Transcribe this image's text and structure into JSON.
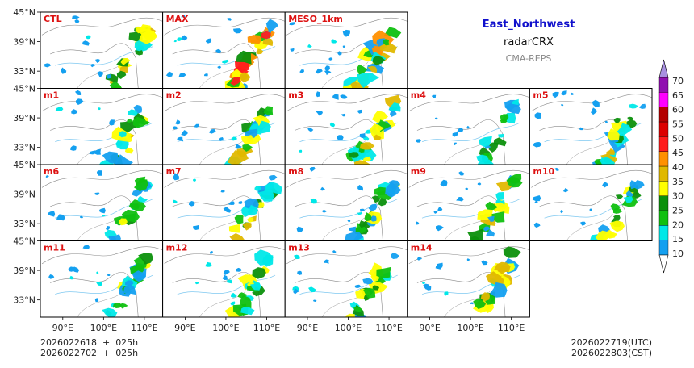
{
  "title": {
    "region": "East_Northwest",
    "variable": "radarCRX",
    "model": "CMA-REPS",
    "region_color": "#1010cc",
    "model_color": "#888888"
  },
  "panels": [
    {
      "label": "CTL",
      "row": 0,
      "col": 0,
      "intensity": 0.6
    },
    {
      "label": "MAX",
      "row": 0,
      "col": 1,
      "intensity": 1.0
    },
    {
      "label": "MESO_1km",
      "row": 0,
      "col": 2,
      "intensity": 0.85
    },
    {
      "label": "m1",
      "row": 1,
      "col": 0,
      "intensity": 0.55
    },
    {
      "label": "m2",
      "row": 1,
      "col": 1,
      "intensity": 0.55
    },
    {
      "label": "m3",
      "row": 1,
      "col": 2,
      "intensity": 0.7
    },
    {
      "label": "m4",
      "row": 1,
      "col": 3,
      "intensity": 0.3
    },
    {
      "label": "m5",
      "row": 1,
      "col": 4,
      "intensity": 0.6
    },
    {
      "label": "m6",
      "row": 2,
      "col": 0,
      "intensity": 0.5
    },
    {
      "label": "m7",
      "row": 2,
      "col": 1,
      "intensity": 0.55
    },
    {
      "label": "m8",
      "row": 2,
      "col": 2,
      "intensity": 0.6
    },
    {
      "label": "m9",
      "row": 2,
      "col": 3,
      "intensity": 0.65
    },
    {
      "label": "m10",
      "row": 2,
      "col": 4,
      "intensity": 0.5
    },
    {
      "label": "m11",
      "row": 3,
      "col": 0,
      "intensity": 0.55
    },
    {
      "label": "m12",
      "row": 3,
      "col": 1,
      "intensity": 0.55
    },
    {
      "label": "m13",
      "row": 3,
      "col": 2,
      "intensity": 0.55
    },
    {
      "label": "m14",
      "row": 3,
      "col": 3,
      "intensity": 0.65
    }
  ],
  "panel_label_color": "#dd1111",
  "lat_ticks": [
    "45°N",
    "39°N",
    "33°N"
  ],
  "lon_ticks": [
    "90°E",
    "100°E",
    "110°E"
  ],
  "colorbar": {
    "levels": [
      "10",
      "15",
      "20",
      "25",
      "30",
      "35",
      "40",
      "45",
      "50",
      "55",
      "60",
      "65",
      "70"
    ],
    "colors": [
      "#14a0f0",
      "#00e8e8",
      "#10c010",
      "#0c900c",
      "#ffff00",
      "#e0b800",
      "#ff9000",
      "#ff1c1c",
      "#dc0000",
      "#b40000",
      "#ff00ff",
      "#9010b0",
      "#a890e0"
    ]
  },
  "footer": {
    "init_utc": "2026022618  +  025h",
    "init_cst": "2026022702  +  025h",
    "valid_utc": "2026022719(UTC)",
    "valid_cst": "2026022803(CST)"
  }
}
